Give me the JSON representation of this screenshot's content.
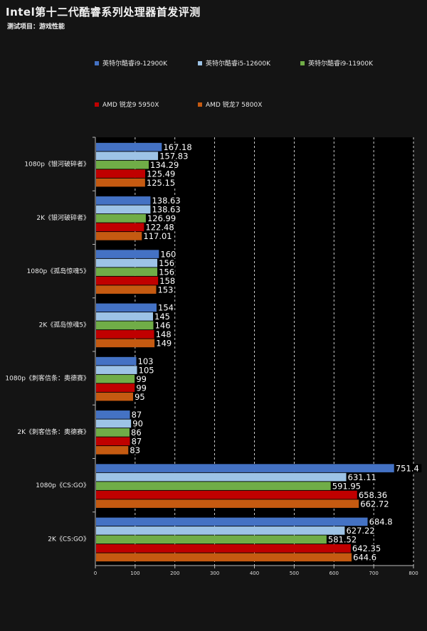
{
  "chart_data": {
    "type": "bar",
    "orientation": "horizontal",
    "title": "Intel第十二代酷睿系列处理器首发评测",
    "subtitle": "测试项目：游戏性能",
    "categories": [
      "1080p《银河破碎者》",
      "2K《银河破碎者》",
      "1080p《孤岛惊魂5》",
      "2K《孤岛惊魂5》",
      "1080p《刺客信条：奥德赛》",
      "2K《刺客信条：奥德赛》",
      "1080p《CS:GO》",
      "2K《CS:GO》"
    ],
    "series": [
      {
        "name": "英特尔酷睿i9-12900K",
        "color": "#4472c4",
        "values": [
          167.18,
          138.63,
          160,
          154,
          103,
          87,
          751.4,
          684.8
        ],
        "labels": [
          "167.18",
          "138.63",
          "160",
          "154",
          "103",
          "87",
          "751.4",
          "684.8"
        ]
      },
      {
        "name": "英特尔酷睿i5-12600K",
        "color": "#9dc3e6",
        "values": [
          157.83,
          138.63,
          156,
          145,
          105,
          90,
          631.11,
          627.22
        ],
        "labels": [
          "157.83",
          "138.63",
          "156",
          "145",
          "105",
          "90",
          "631.11",
          "627.22"
        ]
      },
      {
        "name": "英特尔酷睿i9-11900K",
        "color": "#70ad47",
        "values": [
          134.29,
          126.99,
          156,
          146,
          99,
          86,
          591.95,
          581.52
        ],
        "labels": [
          "134.29",
          "126.99",
          "156",
          "146",
          "99",
          "86",
          "591.95",
          "581.52"
        ]
      },
      {
        "name": "AMD 锐龙9 5950X",
        "color": "#c00000",
        "values": [
          125.49,
          122.48,
          158,
          148,
          99,
          87,
          658.36,
          642.35
        ],
        "labels": [
          "125.49",
          "122.48",
          "158",
          "148",
          "99",
          "87",
          "658.36",
          "642.35"
        ]
      },
      {
        "name": "AMD 锐龙7 5800X",
        "color": "#c55a11",
        "values": [
          125.15,
          117.01,
          153,
          149,
          95,
          83,
          662.72,
          644.6
        ],
        "labels": [
          "125.15",
          "117.01",
          "153",
          "149",
          "95",
          "83",
          "662.72",
          "644.6"
        ]
      }
    ],
    "xlim": [
      0,
      800
    ],
    "xticks": [
      "0",
      "100",
      "200",
      "300",
      "400",
      "500",
      "600",
      "700",
      "800"
    ],
    "grid": true,
    "legend_position": "top"
  }
}
